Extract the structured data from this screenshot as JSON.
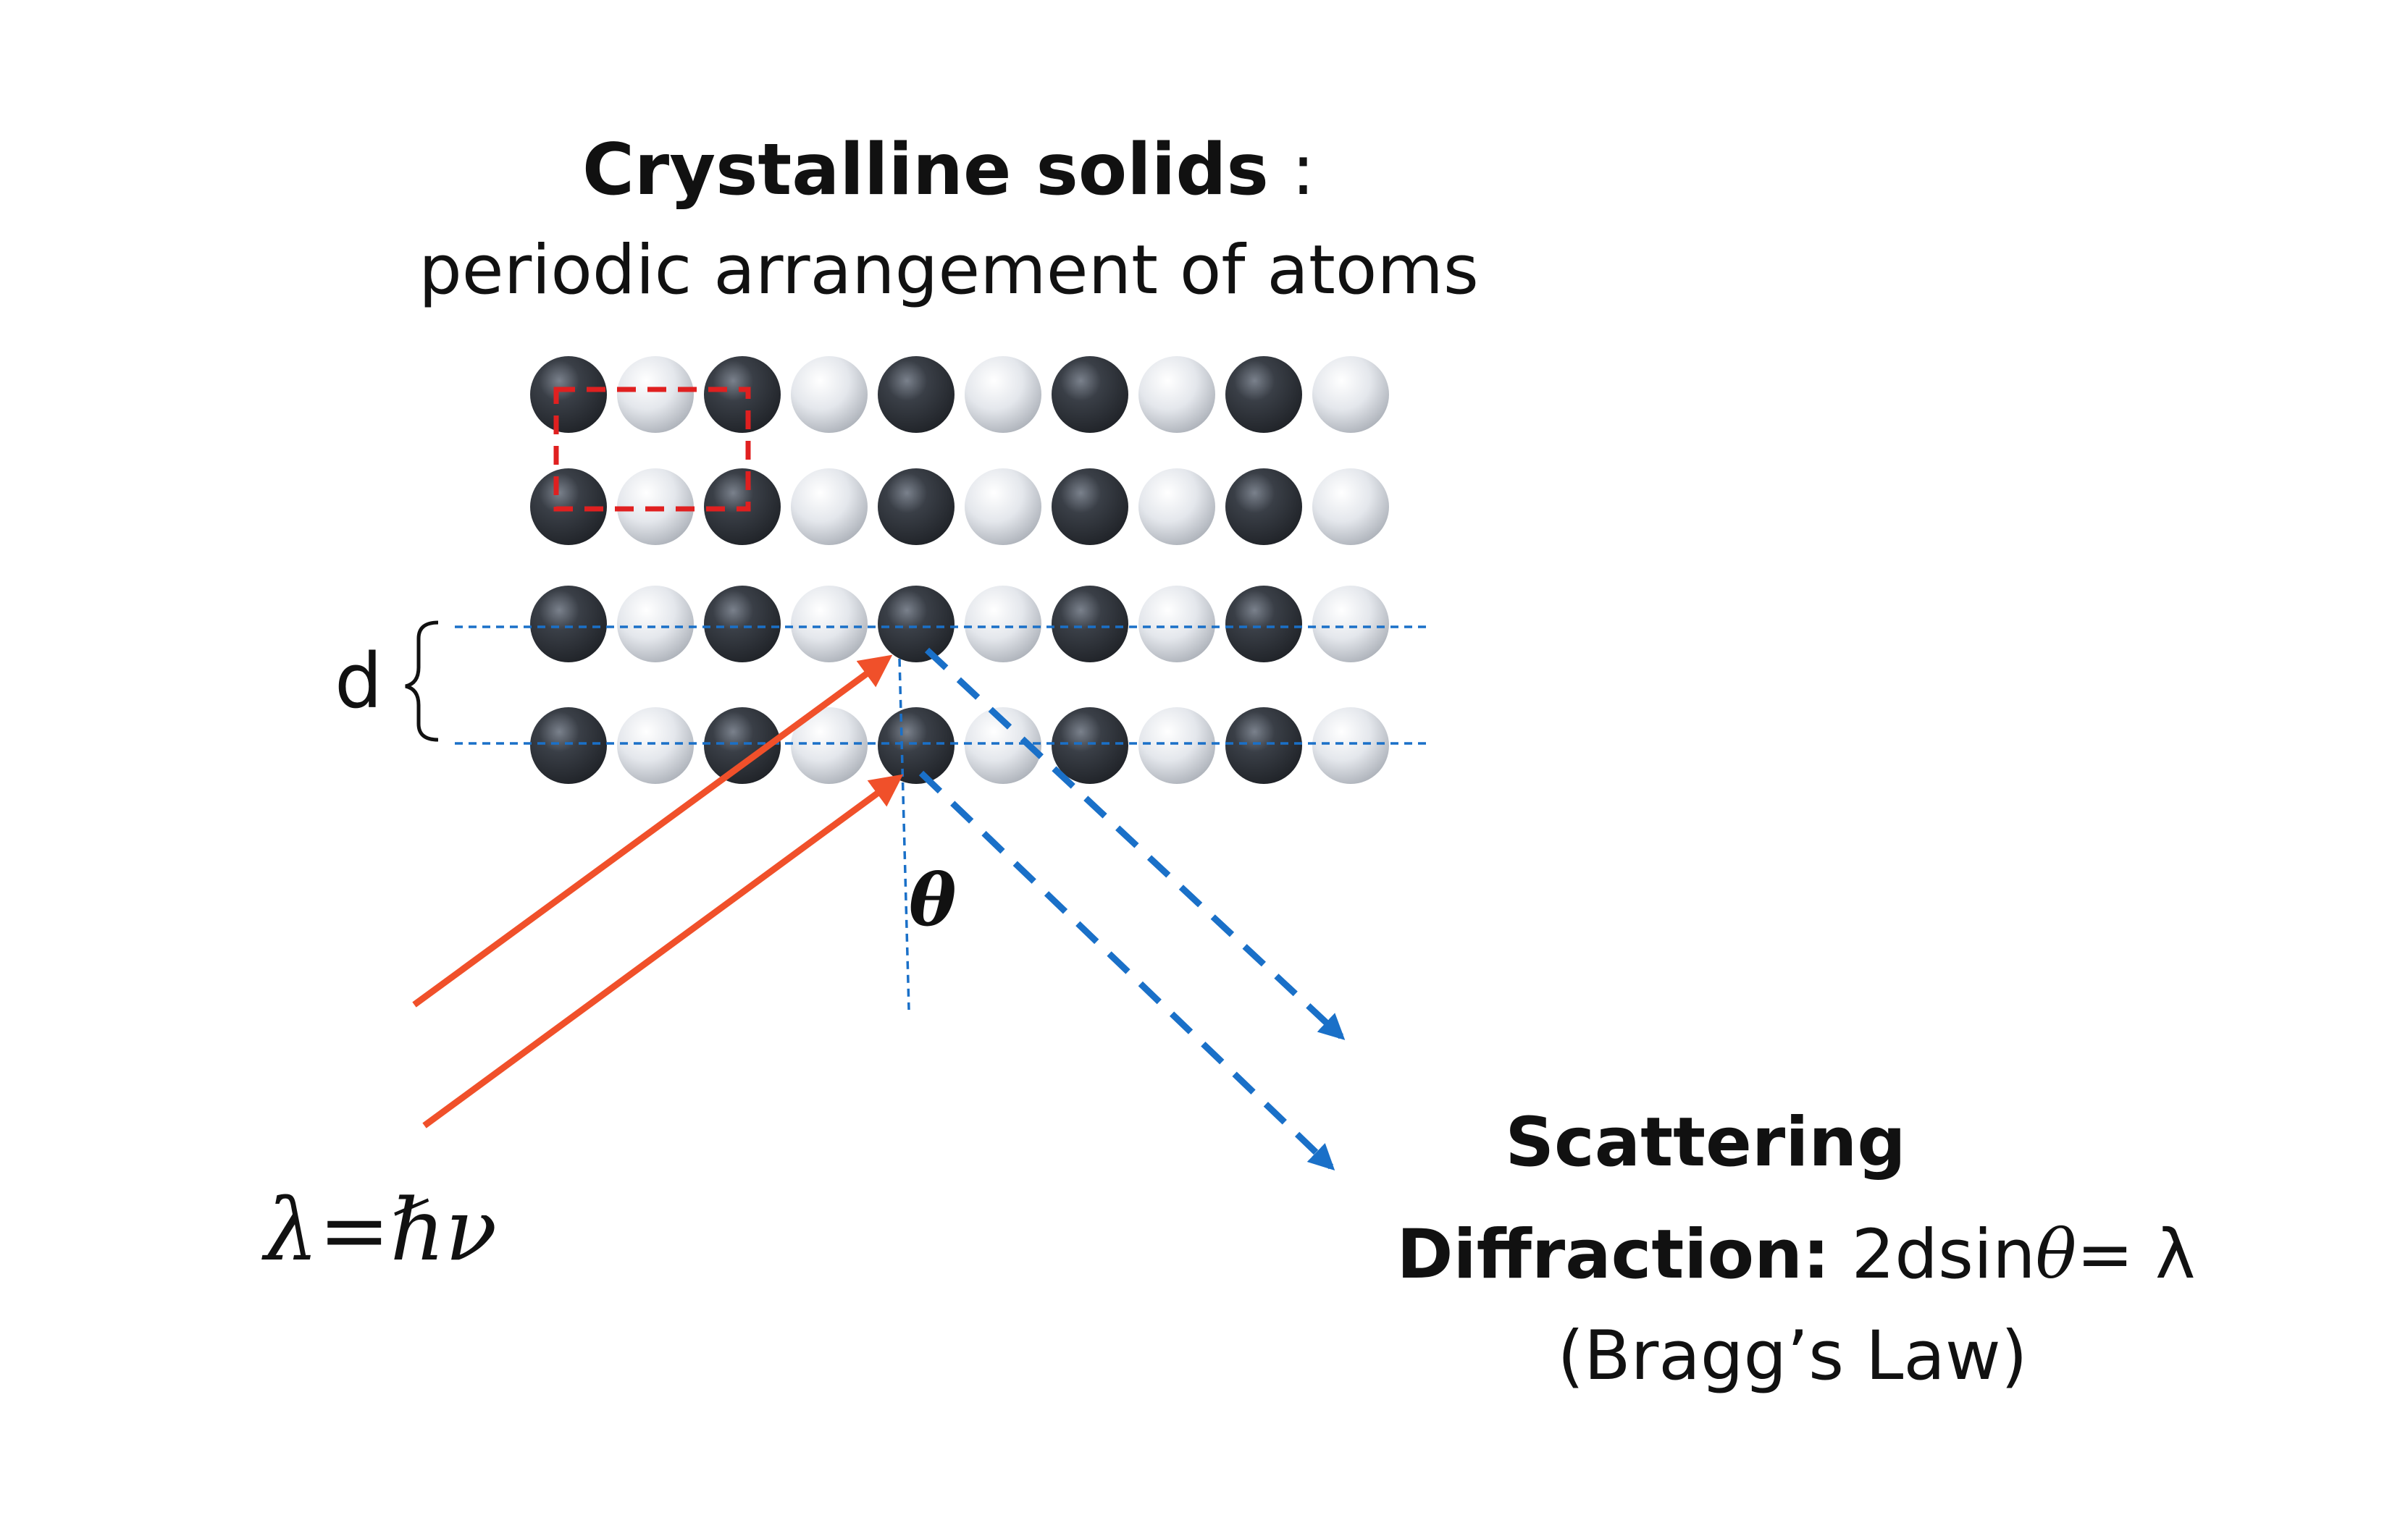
{
  "title": {
    "bold": "Crystalline solids",
    "suffix": " :",
    "subtitle": "periodic arrangement of atoms"
  },
  "lattice": {
    "rows": 4,
    "columns": 10,
    "pattern": [
      "dark",
      "light",
      "dark",
      "light",
      "dark",
      "light",
      "dark",
      "light",
      "dark",
      "light"
    ],
    "pattern_row2": [
      "dark",
      "light",
      "dark",
      "light",
      "dark",
      "light",
      "dark",
      "light",
      "dark",
      "light"
    ]
  },
  "labels": {
    "spacing": "d",
    "angle": "θ",
    "incident": "λ=ℏν",
    "scattering": "Scattering",
    "diffraction_label": "Diffraction:",
    "diffraction_formula_a": " 2dsin",
    "diffraction_formula_theta": "θ",
    "diffraction_formula_b": "= λ",
    "law": "(Bragg’s Law)"
  },
  "colors": {
    "dark_atom": "#2b2f36",
    "light_atom": "#d9dde3",
    "unit_cell": "#e02020",
    "incident_ray": "#f0502a",
    "scattered_ray": "#1a70c8",
    "plane_line": "#1a70c8"
  }
}
